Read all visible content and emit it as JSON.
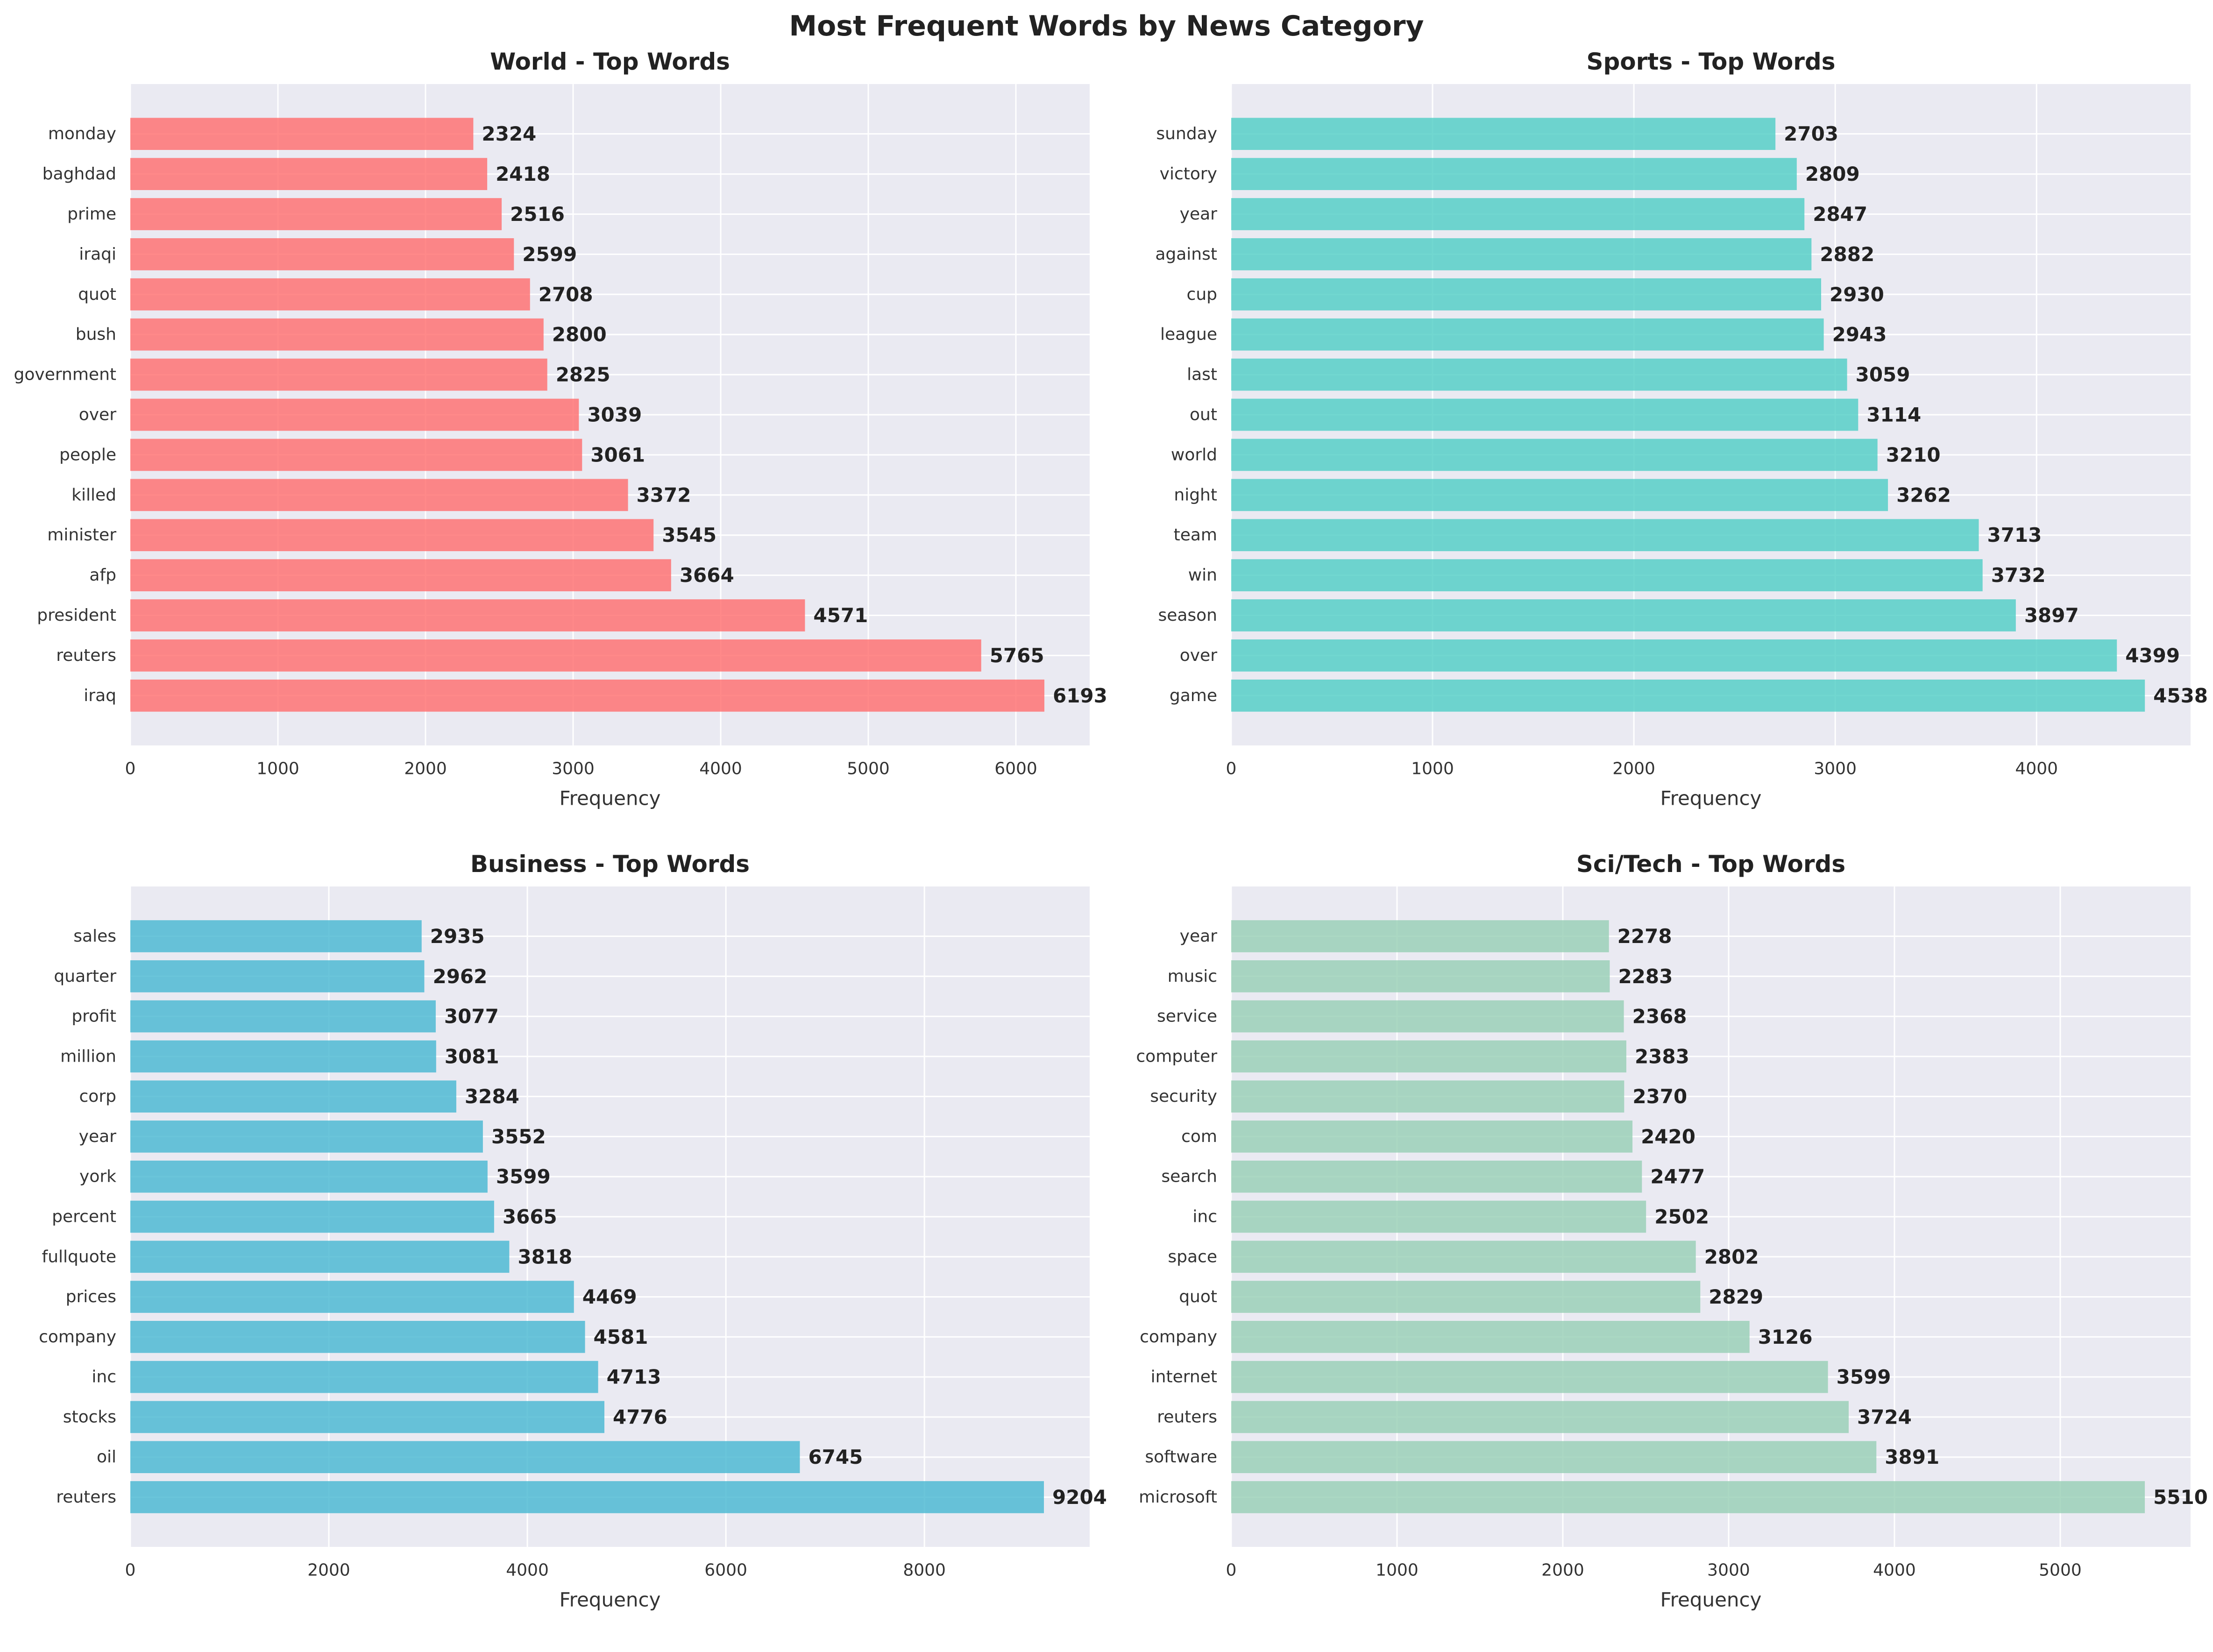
{
  "title": "Most Frequent Words by News Category",
  "chart_data": [
    {
      "type": "bar",
      "orientation": "horizontal",
      "title": "World - Top Words",
      "xlabel": "Frequency",
      "color": "#ff6b6b",
      "xlim": [
        0,
        6500
      ],
      "xticks": [
        0,
        1000,
        2000,
        3000,
        4000,
        5000,
        6000
      ],
      "categories": [
        "iraq",
        "reuters",
        "president",
        "afp",
        "minister",
        "killed",
        "people",
        "over",
        "government",
        "bush",
        "quot",
        "iraqi",
        "prime",
        "baghdad",
        "monday"
      ],
      "values": [
        6193,
        5765,
        4571,
        3664,
        3545,
        3372,
        3061,
        3039,
        2825,
        2800,
        2708,
        2599,
        2516,
        2418,
        2324
      ]
    },
    {
      "type": "bar",
      "orientation": "horizontal",
      "title": "Sports - Top Words",
      "xlabel": "Frequency",
      "color": "#4ecdc4",
      "xlim": [
        0,
        4765
      ],
      "xticks": [
        0,
        1000,
        2000,
        3000,
        4000
      ],
      "categories": [
        "game",
        "over",
        "season",
        "win",
        "team",
        "night",
        "world",
        "out",
        "last",
        "league",
        "cup",
        "against",
        "year",
        "victory",
        "sunday"
      ],
      "values": [
        4538,
        4399,
        3897,
        3732,
        3713,
        3262,
        3210,
        3114,
        3059,
        2943,
        2930,
        2882,
        2847,
        2809,
        2703
      ]
    },
    {
      "type": "bar",
      "orientation": "horizontal",
      "title": "Business - Top Words",
      "xlabel": "Frequency",
      "color": "#45b7d1",
      "xlim": [
        0,
        9665
      ],
      "xticks": [
        0,
        2000,
        4000,
        6000,
        8000
      ],
      "categories": [
        "reuters",
        "oil",
        "stocks",
        "inc",
        "company",
        "prices",
        "fullquote",
        "percent",
        "york",
        "year",
        "corp",
        "million",
        "profit",
        "quarter",
        "sales"
      ],
      "values": [
        9204,
        6745,
        4776,
        4713,
        4581,
        4469,
        3818,
        3665,
        3599,
        3552,
        3284,
        3081,
        3077,
        2962,
        2935
      ]
    },
    {
      "type": "bar",
      "orientation": "horizontal",
      "title": "Sci/Tech - Top Words",
      "xlabel": "Frequency",
      "color": "#96ceb4",
      "xlim": [
        0,
        5786
      ],
      "xticks": [
        0,
        1000,
        2000,
        3000,
        4000,
        5000
      ],
      "categories": [
        "microsoft",
        "software",
        "reuters",
        "internet",
        "company",
        "quot",
        "space",
        "inc",
        "search",
        "com",
        "security",
        "computer",
        "service",
        "music",
        "year"
      ],
      "values": [
        5510,
        3891,
        3724,
        3599,
        3126,
        2829,
        2802,
        2502,
        2477,
        2420,
        2370,
        2383,
        2368,
        2283,
        2278
      ]
    }
  ]
}
